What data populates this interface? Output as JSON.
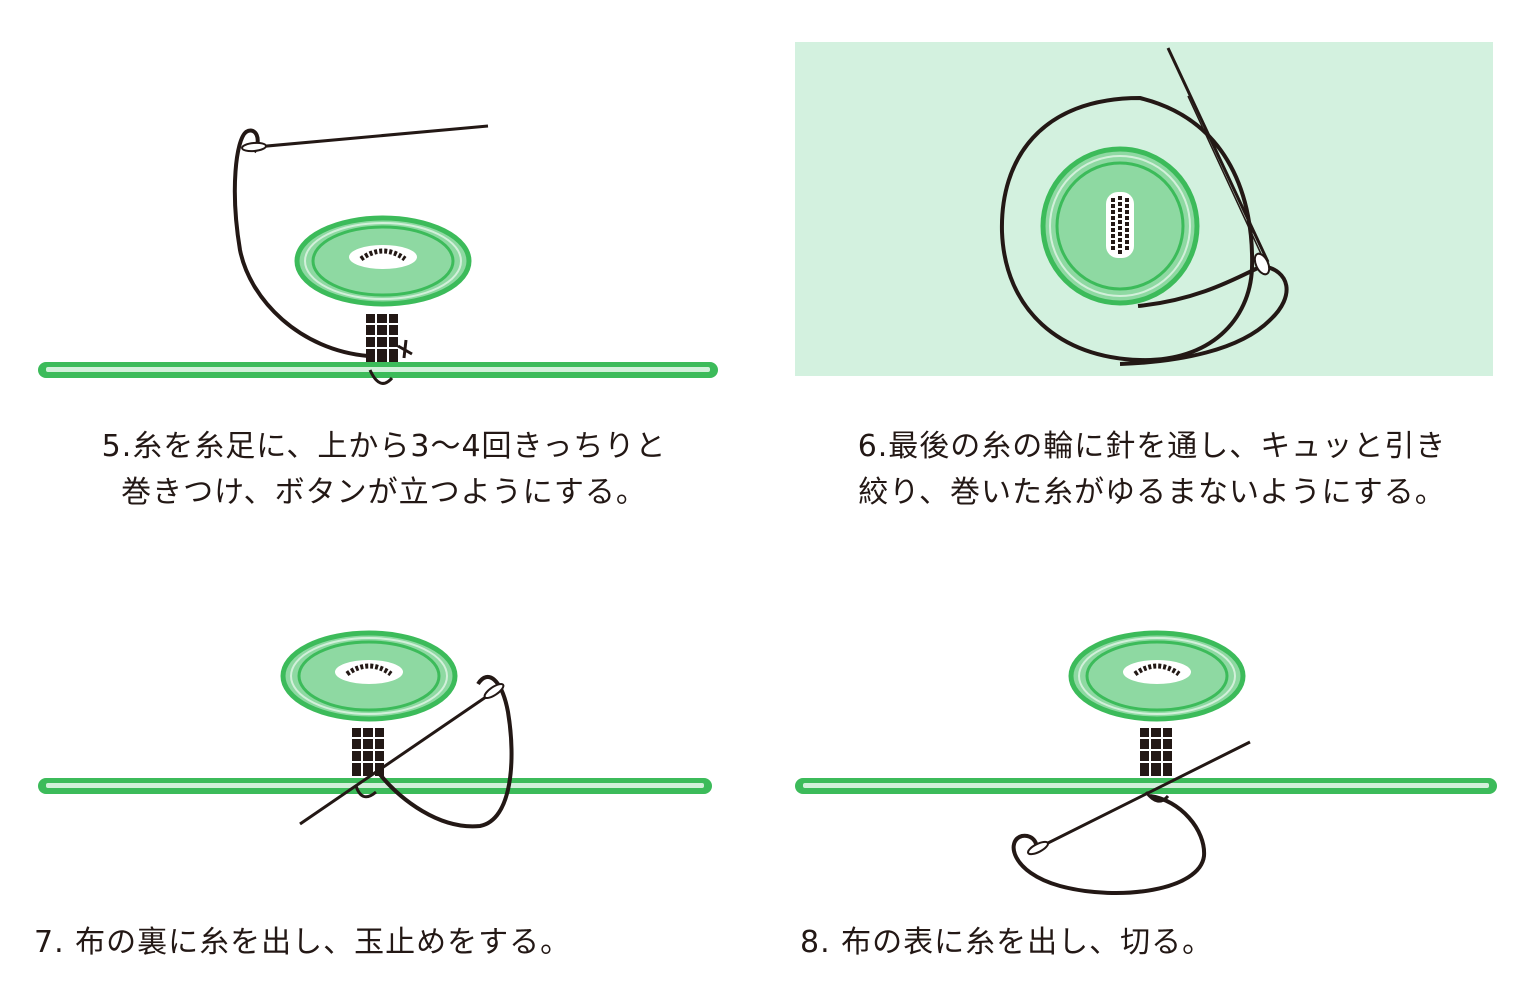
{
  "steps": [
    {
      "id": "5",
      "lines": [
        "5.糸を糸足に、上から3〜4回きっちりと",
        "巻きつけ、ボタンが立つようにする。"
      ]
    },
    {
      "id": "6",
      "lines": [
        "6.最後の糸の輪に針を通し、キュッと引き",
        "絞り、巻いた糸がゆるまないようにする。"
      ]
    },
    {
      "id": "7",
      "lines": [
        "7. 布の裏に糸を出し、玉止めをする。"
      ]
    },
    {
      "id": "8",
      "lines": [
        "8. 布の表に糸を出し、切る。"
      ]
    }
  ],
  "colors": {
    "button_fill": "#8ed9a2",
    "button_edge": "#3cbb5a",
    "fabric": "#3cbb5a",
    "fabric_highlight": "#d2f0da",
    "panel_bg": "#d3f1df",
    "thread": "#231815"
  }
}
